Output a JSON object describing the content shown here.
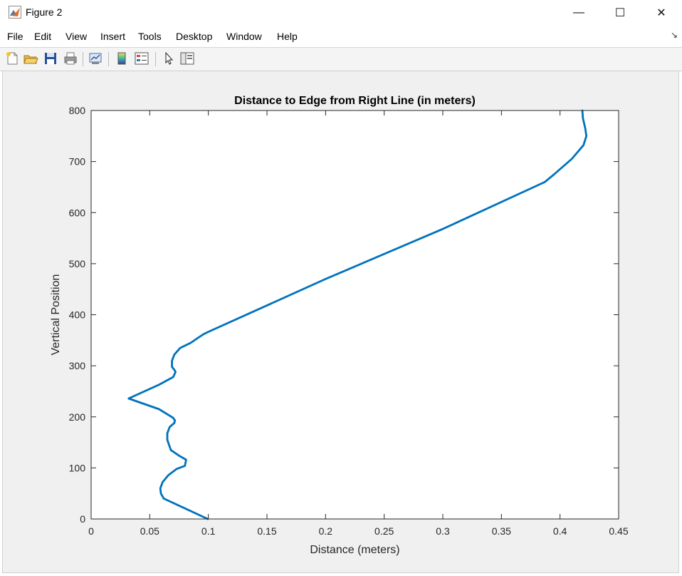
{
  "window": {
    "title": "Figure 2",
    "minimize_glyph": "—",
    "maximize_glyph": "☐",
    "close_glyph": "✕"
  },
  "menu": {
    "items": [
      "File",
      "Edit",
      "View",
      "Insert",
      "Tools",
      "Desktop",
      "Window",
      "Help"
    ],
    "overflow_glyph": "↘"
  },
  "toolbar": {
    "icons": [
      "new-figure-icon",
      "open-file-icon",
      "save-icon",
      "print-icon",
      "link-plot-icon",
      "colorbar-icon",
      "legend-icon",
      "edit-plot-pointer-icon",
      "property-inspector-icon"
    ]
  },
  "chart_data": {
    "type": "line",
    "title": "Distance to Edge from Right Line (in meters)",
    "xlabel": "Distance (meters)",
    "ylabel": "Vertical Position",
    "xlim": [
      0,
      0.45
    ],
    "ylim": [
      0,
      800
    ],
    "xticks": [
      0,
      0.05,
      0.1,
      0.15,
      0.2,
      0.25,
      0.3,
      0.35,
      0.4,
      0.45
    ],
    "xtick_labels": [
      "0",
      "0.05",
      "0.1",
      "0.15",
      "0.2",
      "0.25",
      "0.3",
      "0.35",
      "0.4",
      "0.45"
    ],
    "yticks": [
      0,
      100,
      200,
      300,
      400,
      500,
      600,
      700,
      800
    ],
    "ytick_labels": [
      "0",
      "100",
      "200",
      "300",
      "400",
      "500",
      "600",
      "700",
      "800"
    ],
    "grid": false,
    "line_color": "#0072BD",
    "series": [
      {
        "x": [
          0.0995,
          0.062,
          0.0595,
          0.059,
          0.061,
          0.066,
          0.073,
          0.08,
          0.0805,
          0.081,
          0.075,
          0.068,
          0.065,
          0.065,
          0.067,
          0.071,
          0.0715,
          0.07,
          0.058,
          0.032,
          0.058,
          0.07,
          0.072,
          0.071,
          0.069,
          0.069,
          0.071,
          0.076,
          0.085,
          0.092,
          0.096,
          0.0995,
          0.2,
          0.3,
          0.387,
          0.395,
          0.41,
          0.42,
          0.4225,
          0.4215,
          0.4195,
          0.419
        ],
        "y": [
          0,
          40,
          50,
          60,
          72,
          86,
          98,
          104,
          110,
          116,
          124,
          135,
          155,
          168,
          180,
          188,
          193,
          198,
          215,
          236,
          263,
          278,
          288,
          292,
          298,
          310,
          322,
          335,
          345,
          356,
          362,
          366,
          470,
          568,
          660,
          675,
          705,
          732,
          750,
          765,
          785,
          800
        ]
      }
    ]
  }
}
